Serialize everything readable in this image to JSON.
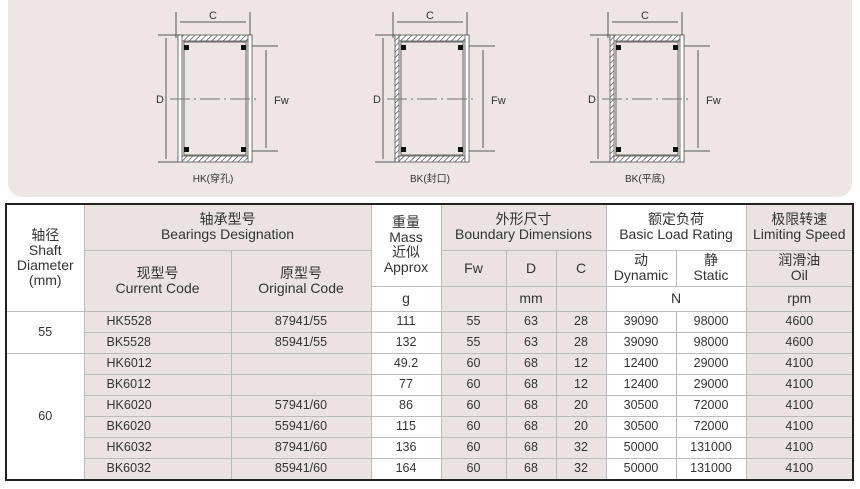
{
  "diagrams": [
    {
      "label": "HK(穿孔)",
      "c": "C",
      "d": "D",
      "fw": "Fw"
    },
    {
      "label": "BK(封口)",
      "c": "C",
      "d": "D",
      "fw": "Fw"
    },
    {
      "label": "BK(平底)",
      "c": "C",
      "d": "D",
      "fw": "Fw"
    }
  ],
  "headers": {
    "shaft": [
      "轴径",
      "Shaft",
      "Diameter",
      "(mm)"
    ],
    "designation": [
      "轴承型号",
      "Bearings Designation"
    ],
    "current": [
      "现型号",
      "Current Code"
    ],
    "original": [
      "原型号",
      "Original Code"
    ],
    "mass": [
      "重量",
      "Mass",
      "近似",
      "Approx"
    ],
    "mass_unit": "g",
    "boundary": [
      "外形尺寸",
      "Boundary Dimensions"
    ],
    "fw": "Fw",
    "d": "D",
    "c": "C",
    "dim_unit": "mm",
    "load": [
      "额定负荷",
      "Basic Load Rating"
    ],
    "dynamic": [
      "动",
      "Dynamic"
    ],
    "static": [
      "静",
      "Static"
    ],
    "load_unit": "N",
    "speed": [
      "极限转速",
      "Limiting Speed"
    ],
    "oil": [
      "润滑油",
      "Oil"
    ],
    "speed_unit": "rpm"
  },
  "groups": [
    {
      "shaft": "55",
      "rows": [
        {
          "current": "HK5528",
          "original": "87941/55",
          "mass": "111",
          "fw": "55",
          "d": "63",
          "c": "28",
          "dynamic": "39090",
          "static": "98000",
          "speed": "4600"
        },
        {
          "current": "BK5528",
          "original": "85941/55",
          "mass": "132",
          "fw": "55",
          "d": "63",
          "c": "28",
          "dynamic": "39090",
          "static": "98000",
          "speed": "4600"
        }
      ]
    },
    {
      "shaft": "60",
      "rows": [
        {
          "current": "HK6012",
          "original": "",
          "mass": "49.2",
          "fw": "60",
          "d": "68",
          "c": "12",
          "dynamic": "12400",
          "static": "29000",
          "speed": "4100"
        },
        {
          "current": "BK6012",
          "original": "",
          "mass": "77",
          "fw": "60",
          "d": "68",
          "c": "12",
          "dynamic": "12400",
          "static": "29000",
          "speed": "4100"
        },
        {
          "current": "HK6020",
          "original": "57941/60",
          "mass": "86",
          "fw": "60",
          "d": "68",
          "c": "20",
          "dynamic": "30500",
          "static": "72000",
          "speed": "4100"
        },
        {
          "current": "BK6020",
          "original": "55941/60",
          "mass": "115",
          "fw": "60",
          "d": "68",
          "c": "20",
          "dynamic": "30500",
          "static": "72000",
          "speed": "4100"
        },
        {
          "current": "HK6032",
          "original": "87941/60",
          "mass": "136",
          "fw": "60",
          "d": "68",
          "c": "32",
          "dynamic": "50000",
          "static": "131000",
          "speed": "4100"
        },
        {
          "current": "BK6032",
          "original": "85941/60",
          "mass": "164",
          "fw": "60",
          "d": "68",
          "c": "32",
          "dynamic": "50000",
          "static": "131000",
          "speed": "4100"
        }
      ]
    }
  ]
}
